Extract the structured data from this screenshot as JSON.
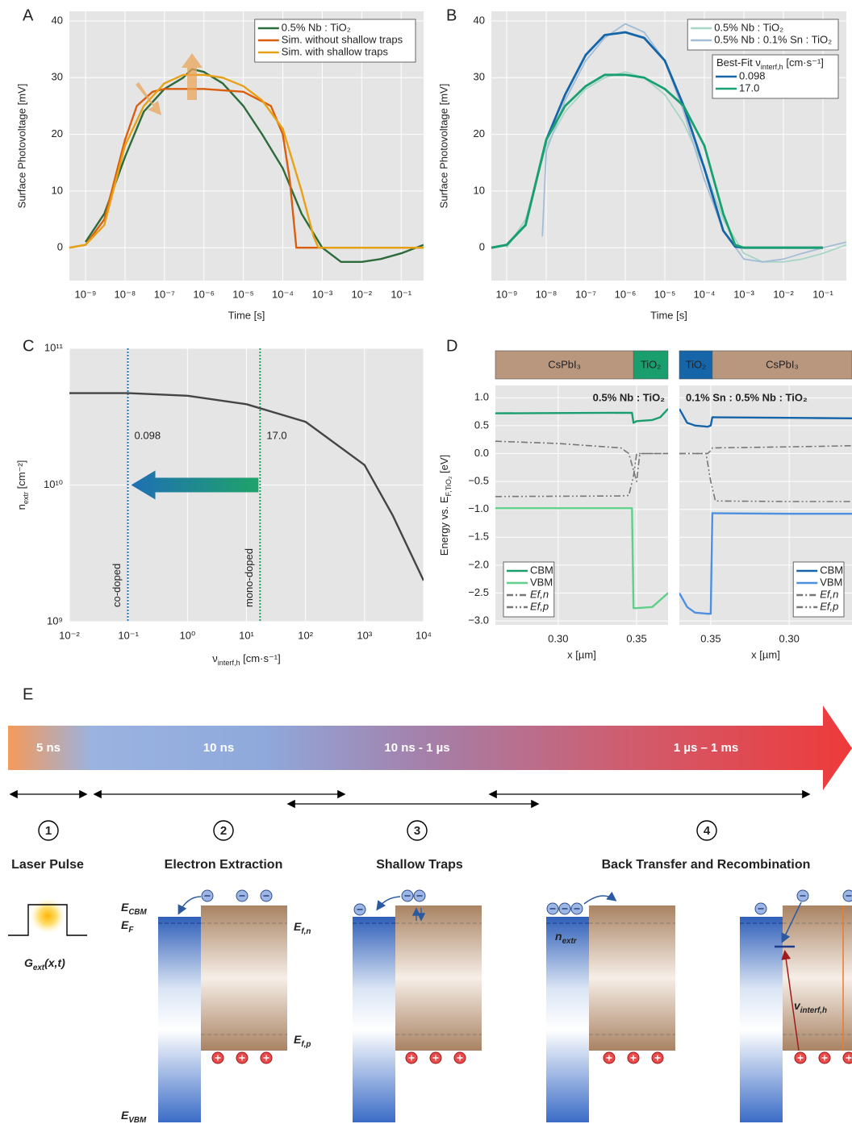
{
  "panel_labels": [
    "A",
    "B",
    "C",
    "D",
    "E"
  ],
  "chart_data": [
    {
      "type": "line",
      "xlabel": "Time [s]",
      "ylabel": "Surface Photovoltage [mV]",
      "xscale": "log",
      "xlim": [
        3.9e-10,
        0.37
      ],
      "ylim": [
        -5.8,
        41.7
      ],
      "xticks": [
        {
          "value": 1e-09,
          "label": "10⁻⁹"
        },
        {
          "value": 1e-08,
          "label": "10⁻⁸"
        },
        {
          "value": 1e-07,
          "label": "10⁻⁷"
        },
        {
          "value": 1e-06,
          "label": "10⁻⁶"
        },
        {
          "value": 1e-05,
          "label": "10⁻⁵"
        },
        {
          "value": 0.0001,
          "label": "10⁻⁴"
        },
        {
          "value": 0.001,
          "label": "10⁻³"
        },
        {
          "value": 0.01,
          "label": "10⁻²"
        },
        {
          "value": 0.1,
          "label": "10⁻¹"
        }
      ],
      "yticks": [
        0,
        10,
        20,
        30,
        40
      ],
      "grid": true,
      "legend": "upper right",
      "series": [
        {
          "name": "0.5% Nb : TiO₂",
          "color": "#2e6b3a",
          "x": [
            1e-09,
            3e-09,
            1e-08,
            3e-08,
            1e-07,
            3e-07,
            5e-07,
            1e-06,
            3e-06,
            1e-05,
            3e-05,
            0.0001,
            0.0003,
            0.001,
            0.003,
            0.01,
            0.03,
            0.1,
            0.37
          ],
          "values": [
            1,
            6,
            16,
            24,
            28,
            30,
            31.5,
            31,
            29,
            25,
            20,
            14,
            6,
            0,
            -2.5,
            -2.5,
            -2,
            -1,
            0.5
          ]
        },
        {
          "name": "Sim. without shallow traps",
          "color": "#d95f0e",
          "x": [
            3.9e-10,
            1e-09,
            3e-09,
            1e-08,
            2e-08,
            5e-08,
            1e-07,
            1e-06,
            1e-05,
            5e-05,
            0.0001,
            0.00015,
            0.00022,
            0.0003,
            0.001,
            0.1,
            0.37
          ],
          "values": [
            0,
            0.5,
            5,
            19,
            25,
            27.5,
            28,
            28,
            27.5,
            25,
            20,
            12,
            0,
            0,
            0,
            0,
            0
          ]
        },
        {
          "name": "Sim. with shallow traps",
          "color": "#e6a117",
          "x": [
            3.9e-10,
            1e-09,
            3e-09,
            1e-08,
            3e-08,
            1e-07,
            3e-07,
            1e-06,
            3e-06,
            1e-05,
            3e-05,
            0.0001,
            0.0003,
            0.0006,
            0.0008,
            0.001,
            0.1,
            0.37
          ],
          "values": [
            0,
            0.5,
            4,
            18,
            25,
            29,
            30.5,
            30.5,
            30,
            28.5,
            26,
            21,
            10,
            2,
            0,
            0,
            0,
            0
          ]
        }
      ]
    },
    {
      "type": "line",
      "xlabel": "Time [s]",
      "ylabel": "Surface Photovoltage [mV]",
      "xscale": "log",
      "xlim": [
        4.1e-10,
        0.39
      ],
      "ylim": [
        -5.8,
        41.7
      ],
      "xticks": [
        {
          "value": 1e-09,
          "label": "10⁻⁹"
        },
        {
          "value": 1e-08,
          "label": "10⁻⁸"
        },
        {
          "value": 1e-07,
          "label": "10⁻⁷"
        },
        {
          "value": 1e-06,
          "label": "10⁻⁶"
        },
        {
          "value": 1e-05,
          "label": "10⁻⁵"
        },
        {
          "value": 0.0001,
          "label": "10⁻⁴"
        },
        {
          "value": 0.001,
          "label": "10⁻³"
        },
        {
          "value": 0.01,
          "label": "10⁻²"
        },
        {
          "value": 0.1,
          "label": "10⁻¹"
        }
      ],
      "yticks": [
        0,
        10,
        20,
        30,
        40
      ],
      "grid": true,
      "legend": "upper right",
      "legend2_title": [
        "Best-Fit ν",
        "interf,h",
        " [cm·s⁻¹]"
      ],
      "series": [
        {
          "name": "0.5% Nb : TiO₂",
          "legend": 1,
          "color": "#a8d5c5",
          "x": [
            1e-09,
            3e-09,
            1e-08,
            3e-08,
            1e-07,
            3e-07,
            1e-06,
            3e-06,
            1e-05,
            3e-05,
            0.0001,
            0.0003,
            0.001,
            0.003,
            0.01,
            0.03,
            0.1,
            0.39
          ],
          "values": [
            0,
            5,
            18,
            24,
            28,
            30,
            31,
            30,
            27,
            22,
            14,
            5,
            -1,
            -2.5,
            -2.5,
            -2,
            -1,
            0.5
          ]
        },
        {
          "name": "0.5% Nb : 0.1% Sn : TiO₂",
          "legend": 1,
          "color": "#a3bdd6",
          "x": [
            8e-09,
            1e-08,
            3e-08,
            1e-07,
            3e-07,
            1e-06,
            3e-06,
            1e-05,
            3e-05,
            0.0001,
            0.0003,
            0.001,
            0.003,
            0.01,
            0.03,
            0.1,
            0.39
          ],
          "values": [
            2,
            17,
            26,
            33,
            37,
            39.5,
            38,
            33,
            24,
            12,
            3,
            -2,
            -2.5,
            -2,
            -1,
            0,
            1
          ]
        },
        {
          "name": "0.098",
          "legend": 2,
          "color": "#1565a8",
          "x": [
            4.1e-10,
            1e-09,
            3e-09,
            1e-08,
            3e-08,
            1e-07,
            3e-07,
            1e-06,
            3e-06,
            1e-05,
            3e-05,
            0.0001,
            0.0003,
            0.0006,
            0.001,
            0.1
          ],
          "values": [
            0,
            0.5,
            4,
            19,
            27,
            34,
            37.5,
            38,
            37,
            33,
            25,
            14,
            3,
            0.2,
            0,
            0
          ]
        },
        {
          "name": "17.0",
          "legend": 2,
          "color": "#19a070",
          "x": [
            4.1e-10,
            1e-09,
            3e-09,
            1e-08,
            3e-08,
            1e-07,
            3e-07,
            1e-06,
            3e-06,
            1e-05,
            3e-05,
            0.0001,
            0.0003,
            0.0006,
            0.001,
            0.1
          ],
          "values": [
            0,
            0.5,
            4,
            19,
            25,
            28.5,
            30.5,
            30.5,
            30,
            28,
            25,
            18,
            6,
            0.5,
            0,
            0
          ]
        }
      ]
    },
    {
      "type": "line",
      "xlabel": [
        "ν",
        "interf,h",
        " [cm·s⁻¹]"
      ],
      "ylabel": [
        "n",
        "extr",
        " [cm⁻²]"
      ],
      "xscale": "log",
      "yscale": "log",
      "xlim": [
        0.01,
        10000
      ],
      "ylim": [
        1000000000.0,
        100000000000.0
      ],
      "xticks": [
        {
          "value": 0.01,
          "label": "10⁻²"
        },
        {
          "value": 0.1,
          "label": "10⁻¹"
        },
        {
          "value": 1,
          "label": "10⁰"
        },
        {
          "value": 10,
          "label": "10¹"
        },
        {
          "value": 100,
          "label": "10²"
        },
        {
          "value": 1000,
          "label": "10³"
        },
        {
          "value": 10000,
          "label": "10⁴"
        }
      ],
      "yticks": [
        {
          "value": 1000000000.0,
          "label": "10⁹"
        },
        {
          "value": 10000000000.0,
          "label": "10¹⁰"
        },
        {
          "value": 100000000000.0,
          "label": "10¹¹"
        }
      ],
      "grid": true,
      "series": [
        {
          "color": "#444444",
          "x": [
            0.01,
            0.1,
            1,
            10,
            100,
            1000,
            3000,
            10000
          ],
          "values": [
            47000000000.0,
            47000000000.0,
            45000000000.0,
            39000000000.0,
            29000000000.0,
            14000000000.0,
            6000000000.0,
            2000000000.0
          ]
        }
      ],
      "vlines": [
        {
          "x": 0.098,
          "label": "0.098",
          "text": "co-doped",
          "color": "#1f77b4"
        },
        {
          "x": 17,
          "label": "17.0",
          "text": "mono-doped",
          "color": "#21a366"
        }
      ]
    },
    {
      "type": "line",
      "xlabel": "x [µm]",
      "ylabel": [
        "Energy vs. E",
        "F,TiO₂",
        " [eV]"
      ],
      "xlim": [
        0.26,
        0.37
      ],
      "ylim": [
        -3.07,
        1.22
      ],
      "xticks": [
        {
          "value": 0.3,
          "label": "0.30"
        },
        0.35
      ],
      "yticks": [
        {
          "value": 1,
          "label": "1.0"
        },
        0.5,
        {
          "value": 0,
          "label": "0.0"
        },
        {
          "value": -0.5,
          "label": "−0.5"
        },
        {
          "value": -1,
          "label": "−1.0"
        },
        {
          "value": -1.5,
          "label": "−1.5"
        },
        {
          "value": -2,
          "label": "−2.0"
        },
        {
          "value": -2.5,
          "label": "−2.5"
        },
        {
          "value": -3,
          "label": "−3.0"
        }
      ],
      "grid": true,
      "legend": "lower left",
      "annotation": "0.5% Nb : TiO₂",
      "layers": [
        {
          "name": "CsPbI₃",
          "from": 0.26,
          "to": 0.348,
          "color": "#b8977e"
        },
        {
          "name": "TiO₂",
          "from": 0.348,
          "to": 0.37,
          "color": "#1a9e6e"
        }
      ],
      "series": [
        {
          "name": "CBM",
          "color": "#1a9e6e",
          "linestyle": "solid",
          "x": [
            0.26,
            0.347,
            0.348,
            0.35,
            0.36,
            0.365,
            0.37
          ],
          "values": [
            0.72,
            0.73,
            0.55,
            0.58,
            0.6,
            0.65,
            0.8
          ]
        },
        {
          "name": "VBM",
          "color": "#5fcf8a",
          "linestyle": "solid",
          "x": [
            0.26,
            0.347,
            0.348,
            0.35,
            0.36,
            0.37
          ],
          "values": [
            -0.98,
            -0.98,
            -2.77,
            -2.77,
            -2.75,
            -2.5
          ]
        },
        {
          "name": "Ef,n",
          "color": "#777777",
          "linestyle": "dashdot",
          "x": [
            0.26,
            0.3,
            0.34,
            0.345,
            0.35,
            0.352,
            0.37
          ],
          "values": [
            0.22,
            0.18,
            0.1,
            0,
            -0.5,
            0,
            0
          ]
        },
        {
          "name": "Ef,p",
          "color": "#777777",
          "linestyle": "dashdotdot",
          "x": [
            0.26,
            0.34,
            0.345,
            0.348,
            0.35,
            0.37
          ],
          "values": [
            -0.77,
            -0.76,
            -0.75,
            -0.4,
            0,
            0
          ]
        }
      ]
    },
    {
      "type": "line",
      "xlabel": "x [µm]",
      "sharey": true,
      "xlim": [
        0.37,
        0.26
      ],
      "ylim": [
        -3.07,
        1.22
      ],
      "xticks": [
        0.35,
        {
          "value": 0.3,
          "label": "0.30"
        }
      ],
      "grid": true,
      "legend": "lower right",
      "annotation": "0.1% Sn : 0.5% Nb : TiO₂",
      "layers": [
        {
          "name": "TiO₂",
          "from": 0.37,
          "to": 0.349,
          "color": "#1565a8"
        },
        {
          "name": "CsPbI₃",
          "from": 0.349,
          "to": 0.26,
          "color": "#b8977e"
        }
      ],
      "series": [
        {
          "name": "CBM",
          "color": "#1565a8",
          "linestyle": "solid",
          "x": [
            0.37,
            0.365,
            0.36,
            0.352,
            0.35,
            0.349,
            0.3,
            0.26
          ],
          "values": [
            0.8,
            0.55,
            0.5,
            0.48,
            0.5,
            0.65,
            0.64,
            0.63
          ]
        },
        {
          "name": "VBM",
          "color": "#4f8fe0",
          "linestyle": "solid",
          "x": [
            0.37,
            0.365,
            0.36,
            0.352,
            0.35,
            0.349,
            0.3,
            0.26
          ],
          "values": [
            -2.5,
            -2.75,
            -2.85,
            -2.87,
            -2.87,
            -1.07,
            -1.08,
            -1.08
          ]
        },
        {
          "name": "Ef,n",
          "color": "#777777",
          "linestyle": "dashdot",
          "x": [
            0.37,
            0.352,
            0.35,
            0.349,
            0.3,
            0.26
          ],
          "values": [
            0,
            0,
            0.05,
            0.1,
            0.12,
            0.14
          ]
        },
        {
          "name": "Ef,p",
          "color": "#777777",
          "linestyle": "dashdotdot",
          "x": [
            0.37,
            0.353,
            0.35,
            0.347,
            0.3,
            0.26
          ],
          "values": [
            0,
            0,
            -0.5,
            -0.85,
            -0.86,
            -0.86
          ]
        }
      ]
    }
  ],
  "diagram": {
    "timeline": [
      "5 ns",
      "10 ns",
      "10 ns - 1 µs",
      "1 µs – 1 ms"
    ],
    "steps": [
      {
        "number": "1",
        "title": "Laser Pulse"
      },
      {
        "number": "2",
        "title": "Electron Extraction"
      },
      {
        "number": "3",
        "title": "Shallow Traps"
      },
      {
        "number": "4",
        "title": "Back Transfer and Recombination"
      }
    ],
    "labels": {
      "g_ext": [
        "G",
        "ext",
        "(x,t)"
      ],
      "e_cbm": [
        "E",
        "CBM"
      ],
      "e_f": [
        "E",
        "F"
      ],
      "e_fn": [
        "E",
        "f,n"
      ],
      "e_fp": [
        "E",
        "f,p"
      ],
      "e_vbm": [
        "E",
        "VBM"
      ],
      "n_extr": [
        "n",
        "extr"
      ],
      "v_interf": [
        "v",
        "interf,h"
      ]
    }
  }
}
